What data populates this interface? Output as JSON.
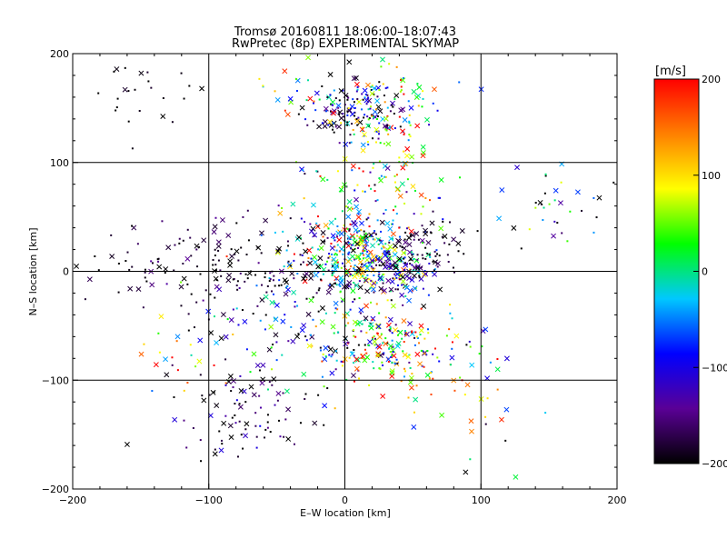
{
  "chart_data": {
    "type": "scatter",
    "title_line1": "Tromsø 20160811 18:06:00–18:07:43",
    "title_line2": "RwPretec (8p) EXPERIMENTAL SKYMAP",
    "xlabel": "E–W location [km]",
    "ylabel": "N–S location [km]",
    "xlim": [
      -200,
      200
    ],
    "ylim": [
      -200,
      200
    ],
    "x_ticks": [
      "−200",
      "−100",
      "0",
      "100",
      "200"
    ],
    "y_ticks": [
      "−200",
      "−100",
      "0",
      "100",
      "200"
    ],
    "grid": true,
    "grid_at": [
      -100,
      0,
      100
    ],
    "colorbar": {
      "label": "[m/s]",
      "range": [
        -200,
        200
      ],
      "ticks": [
        "200",
        "100",
        "0",
        "−100",
        "−200"
      ],
      "colors": [
        "#000000",
        "#5a0096",
        "#0000ff",
        "#00c8ff",
        "#00ff00",
        "#ffff00",
        "#ff8000",
        "#ff0000"
      ]
    },
    "markers": [
      "x",
      "dot"
    ],
    "clusters": [
      {
        "x": 10,
        "y": 150,
        "sx": 18,
        "sy": 14,
        "n": 140,
        "v": -160,
        "vs": 90
      },
      {
        "x": 30,
        "y": 130,
        "sx": 20,
        "sy": 22,
        "n": 60,
        "v": 40,
        "vs": 80
      },
      {
        "x": 15,
        "y": 60,
        "sx": 30,
        "sy": 30,
        "n": 140,
        "v": 20,
        "vs": 110
      },
      {
        "x": 10,
        "y": 10,
        "sx": 25,
        "sy": 20,
        "n": 320,
        "v": 0,
        "vs": 120
      },
      {
        "x": 40,
        "y": 0,
        "sx": 15,
        "sy": 12,
        "n": 90,
        "v": -120,
        "vs": 80
      },
      {
        "x": -80,
        "y": 5,
        "sx": 50,
        "sy": 22,
        "n": 200,
        "v": -190,
        "vs": 25
      },
      {
        "x": -30,
        "y": -50,
        "sx": 35,
        "sy": 25,
        "n": 120,
        "v": -80,
        "vs": 110
      },
      {
        "x": 30,
        "y": -70,
        "sx": 30,
        "sy": 15,
        "n": 200,
        "v": 30,
        "vs": 130
      },
      {
        "x": 60,
        "y": 25,
        "sx": 15,
        "sy": 12,
        "n": 60,
        "v": -190,
        "vs": 20
      },
      {
        "x": -75,
        "y": -125,
        "sx": 25,
        "sy": 20,
        "n": 90,
        "v": -180,
        "vs": 40
      },
      {
        "x": -145,
        "y": 160,
        "sx": 20,
        "sy": 25,
        "n": 25,
        "v": -200,
        "vs": 10
      },
      {
        "x": 160,
        "y": 60,
        "sx": 20,
        "sy": 20,
        "n": 35,
        "v": -120,
        "vs": 120
      },
      {
        "x": 70,
        "y": -100,
        "sx": 25,
        "sy": 15,
        "n": 30,
        "v": 100,
        "vs": 80
      },
      {
        "x": -40,
        "y": 170,
        "sx": 15,
        "sy": 20,
        "n": 20,
        "v": 50,
        "vs": 100
      },
      {
        "x": 40,
        "y": 170,
        "sx": 25,
        "sy": 15,
        "n": 40,
        "v": 30,
        "vs": 110
      },
      {
        "x": 110,
        "y": -150,
        "sx": 25,
        "sy": 25,
        "n": 12,
        "v": -100,
        "vs": 150
      },
      {
        "x": -120,
        "y": -80,
        "sx": 15,
        "sy": 20,
        "n": 18,
        "v": 100,
        "vs": 100
      }
    ]
  }
}
